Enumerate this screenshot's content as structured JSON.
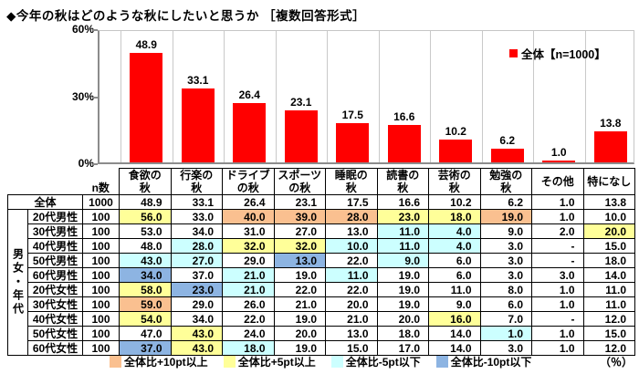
{
  "title": "◆今年の秋はどのような秋にしたいと思うか ［複数回答形式］",
  "chart_data": {
    "type": "bar",
    "title": "今年の秋はどのような秋にしたいと思うか ［複数回答形式］",
    "categories": [
      "食欲の秋",
      "行楽の秋",
      "ドライブの秋",
      "スポーツの秋",
      "睡眠の秋",
      "読書の秋",
      "芸術の秋",
      "勉強の秋",
      "その他",
      "特になし"
    ],
    "values": [
      48.9,
      33.1,
      26.4,
      23.1,
      17.5,
      16.6,
      10.2,
      6.2,
      1.0,
      13.8
    ],
    "value_labels": [
      "48.9",
      "33.1",
      "26.4",
      "23.1",
      "17.5",
      "16.6",
      "10.2",
      "6.2",
      "1.0",
      "13.8"
    ],
    "xlabel": "",
    "ylabel": "",
    "ylim": [
      0,
      60
    ],
    "y_ticks": [
      {
        "value": 60,
        "label": "60%"
      },
      {
        "value": 30,
        "label": "30%"
      },
      {
        "value": 0,
        "label": "0%"
      }
    ],
    "grid": "vertical",
    "legend": "全体【n=1000】",
    "legend_position": "top-right",
    "bar_color": "#FF0000"
  },
  "table": {
    "n_header": "n数",
    "col_headers": [
      "食欲の\n秋",
      "行楽の\n秋",
      "ドライブ\nの秋",
      "スポーツ\nの秋",
      "睡眠の\n秋",
      "読書の\n秋",
      "芸術の\n秋",
      "勉強の\n秋",
      "その他",
      "特になし"
    ],
    "group_label": "男女・年代",
    "rows": [
      {
        "label": "全体",
        "n": "1000",
        "values": [
          "48.9",
          "33.1",
          "26.4",
          "23.1",
          "17.5",
          "16.6",
          "10.2",
          "6.2",
          "1.0",
          "13.8"
        ],
        "marks": [
          "",
          "",
          "",
          "",
          "",
          "",
          "",
          "",
          "",
          ""
        ]
      },
      {
        "label": "20代男性",
        "n": "100",
        "values": [
          "56.0",
          "33.0",
          "40.0",
          "39.0",
          "28.0",
          "23.0",
          "18.0",
          "19.0",
          "1.0",
          "10.0"
        ],
        "marks": [
          "p5",
          "",
          "p10",
          "p10",
          "p10",
          "p5",
          "p5",
          "p10",
          "",
          ""
        ]
      },
      {
        "label": "30代男性",
        "n": "100",
        "values": [
          "53.0",
          "34.0",
          "31.0",
          "27.0",
          "13.0",
          "11.0",
          "4.0",
          "9.0",
          "2.0",
          "20.0"
        ],
        "marks": [
          "",
          "",
          "",
          "",
          "",
          "m5",
          "m5",
          "",
          "",
          "p5"
        ]
      },
      {
        "label": "40代男性",
        "n": "100",
        "values": [
          "48.0",
          "28.0",
          "32.0",
          "32.0",
          "10.0",
          "11.0",
          "4.0",
          "3.0",
          "-",
          "15.0"
        ],
        "marks": [
          "",
          "m5",
          "p5",
          "p5",
          "m5",
          "m5",
          "m5",
          "",
          "",
          ""
        ]
      },
      {
        "label": "50代男性",
        "n": "100",
        "values": [
          "43.0",
          "27.0",
          "29.0",
          "13.0",
          "22.0",
          "9.0",
          "6.0",
          "3.0",
          "-",
          "18.0"
        ],
        "marks": [
          "m5",
          "m5",
          "",
          "m10",
          "",
          "m5",
          "",
          "",
          "",
          ""
        ]
      },
      {
        "label": "60代男性",
        "n": "100",
        "values": [
          "34.0",
          "37.0",
          "21.0",
          "19.0",
          "11.0",
          "19.0",
          "6.0",
          "3.0",
          "3.0",
          "14.0"
        ],
        "marks": [
          "m10",
          "",
          "m5",
          "",
          "m5",
          "",
          "",
          "",
          "",
          ""
        ]
      },
      {
        "label": "20代女性",
        "n": "100",
        "values": [
          "58.0",
          "23.0",
          "21.0",
          "22.0",
          "22.0",
          "19.0",
          "11.0",
          "8.0",
          "1.0",
          "11.0"
        ],
        "marks": [
          "p5",
          "m10",
          "m5",
          "",
          "",
          "",
          "",
          "",
          "",
          ""
        ]
      },
      {
        "label": "30代女性",
        "n": "100",
        "values": [
          "59.0",
          "29.0",
          "26.0",
          "21.0",
          "20.0",
          "19.0",
          "9.0",
          "6.0",
          "1.0",
          "11.0"
        ],
        "marks": [
          "p10",
          "",
          "",
          "",
          "",
          "",
          "",
          "",
          "",
          ""
        ]
      },
      {
        "label": "40代女性",
        "n": "100",
        "values": [
          "54.0",
          "34.0",
          "22.0",
          "19.0",
          "21.0",
          "20.0",
          "16.0",
          "7.0",
          "-",
          "12.0"
        ],
        "marks": [
          "p5",
          "",
          "",
          "",
          "",
          "",
          "p5",
          "",
          "",
          ""
        ]
      },
      {
        "label": "50代女性",
        "n": "100",
        "values": [
          "47.0",
          "43.0",
          "24.0",
          "20.0",
          "13.0",
          "18.0",
          "14.0",
          "1.0",
          "1.0",
          "15.0"
        ],
        "marks": [
          "",
          "p5",
          "",
          "",
          "",
          "",
          "",
          "m5",
          "",
          ""
        ]
      },
      {
        "label": "60代女性",
        "n": "100",
        "values": [
          "37.0",
          "43.0",
          "18.0",
          "19.0",
          "15.0",
          "17.0",
          "14.0",
          "3.0",
          "1.0",
          "12.0"
        ],
        "marks": [
          "m10",
          "p5",
          "m5",
          "",
          "",
          "",
          "",
          "",
          "",
          ""
        ]
      }
    ]
  },
  "highlight_colors": {
    "p10": "#FAC090",
    "p5": "#FFFF99",
    "m5": "#CCFFFF",
    "m10": "#8DB4E2"
  },
  "color_legend": [
    {
      "mark": "p10",
      "label": "全体比+10pt以上"
    },
    {
      "mark": "p5",
      "label": "全体比+5pt以上"
    },
    {
      "mark": "m5",
      "label": "全体比-5pt以下"
    },
    {
      "mark": "m10",
      "label": "全体比-10pt以下"
    }
  ],
  "percent_note": "（％）"
}
